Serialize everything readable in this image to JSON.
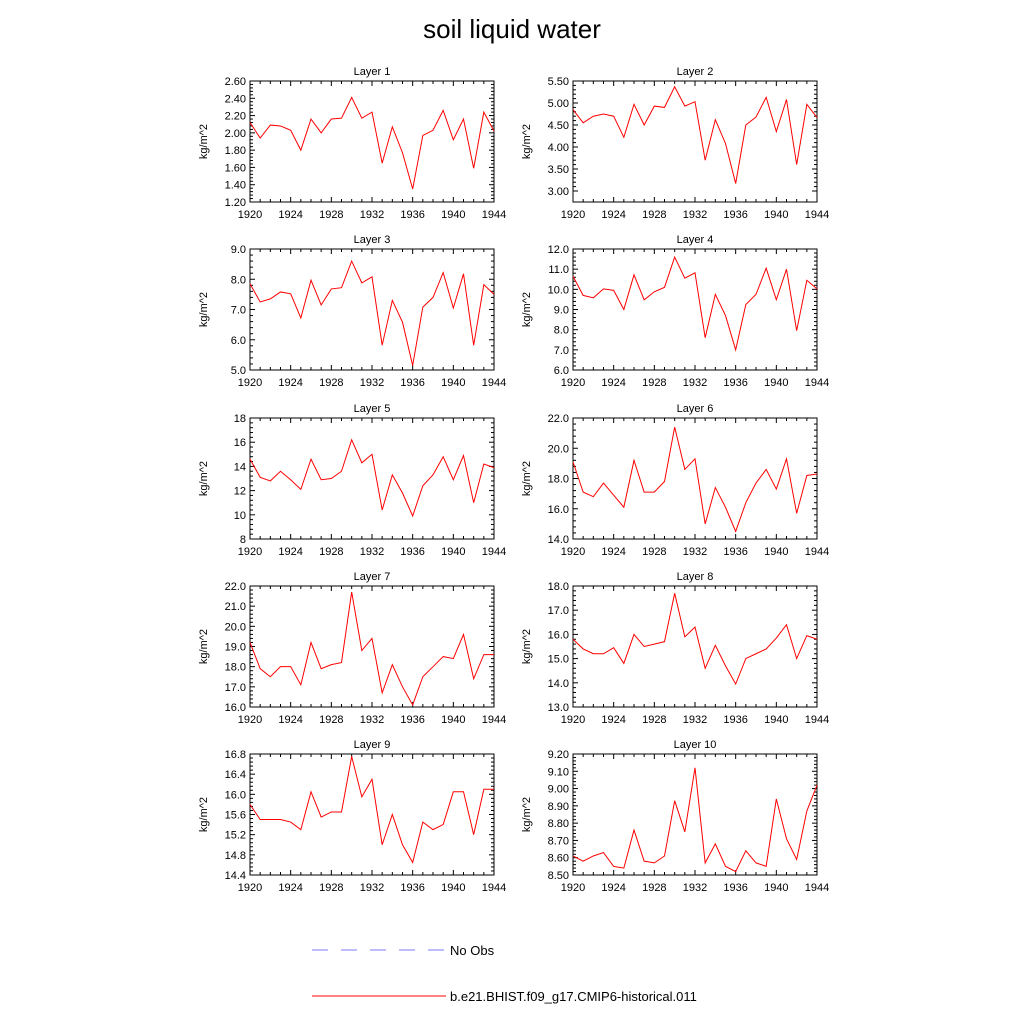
{
  "figure_title": "soil liquid water",
  "legend": {
    "obs_label": "No Obs",
    "obs_color": "#7a7aff",
    "model_label": "b.e21.BHIST.f09_g17.CMIP6-historical.011",
    "model_color": "#ff0000"
  },
  "chart_data": [
    {
      "type": "line",
      "title": "Layer 1",
      "xlabel": "",
      "ylabel": "kg/m^2",
      "xlim": [
        1920,
        1944
      ],
      "ylim": [
        1.2,
        2.6
      ],
      "xticks": [
        "1920",
        "1924",
        "1928",
        "1932",
        "1936",
        "1940",
        "1944"
      ],
      "yticks": [
        "1.20",
        "1.40",
        "1.60",
        "1.80",
        "2.00",
        "2.20",
        "2.40",
        "2.60"
      ],
      "x": [
        1920,
        1921,
        1922,
        1923,
        1924,
        1925,
        1926,
        1927,
        1928,
        1929,
        1930,
        1931,
        1932,
        1933,
        1934,
        1935,
        1936,
        1937,
        1938,
        1939,
        1940,
        1941,
        1942,
        1943,
        1944
      ],
      "series": [
        {
          "name": "b.e21.BHIST.f09_g17.CMIP6-historical.011",
          "values": [
            2.12,
            1.94,
            2.09,
            2.08,
            2.03,
            1.8,
            2.16,
            2.0,
            2.16,
            2.17,
            2.41,
            2.17,
            2.24,
            1.65,
            2.07,
            1.77,
            1.35,
            1.97,
            2.03,
            2.26,
            1.92,
            2.16,
            1.59,
            2.24,
            2.02
          ]
        }
      ]
    },
    {
      "type": "line",
      "title": "Layer 2",
      "xlabel": "",
      "ylabel": "kg/m^2",
      "xlim": [
        1920,
        1944
      ],
      "ylim": [
        2.75,
        5.5
      ],
      "xticks": [
        "1920",
        "1924",
        "1928",
        "1932",
        "1936",
        "1940",
        "1944"
      ],
      "yticks": [
        "3.00",
        "3.50",
        "4.00",
        "4.50",
        "5.00",
        "5.50"
      ],
      "x": [
        1920,
        1921,
        1922,
        1923,
        1924,
        1925,
        1926,
        1927,
        1928,
        1929,
        1930,
        1931,
        1932,
        1933,
        1934,
        1935,
        1936,
        1937,
        1938,
        1939,
        1940,
        1941,
        1942,
        1943,
        1944
      ],
      "series": [
        {
          "name": "b.e21.BHIST.f09_g17.CMIP6-historical.011",
          "values": [
            4.85,
            4.55,
            4.7,
            4.75,
            4.7,
            4.22,
            4.97,
            4.5,
            4.93,
            4.9,
            5.37,
            4.93,
            5.03,
            3.7,
            4.62,
            4.08,
            3.17,
            4.5,
            4.68,
            5.13,
            4.35,
            5.08,
            3.6,
            4.97,
            4.67
          ]
        }
      ]
    },
    {
      "type": "line",
      "title": "Layer 3",
      "xlabel": "",
      "ylabel": "kg/m^2",
      "xlim": [
        1920,
        1944
      ],
      "ylim": [
        5.0,
        9.0
      ],
      "xticks": [
        "1920",
        "1924",
        "1928",
        "1932",
        "1936",
        "1940",
        "1944"
      ],
      "yticks": [
        "5.0",
        "6.0",
        "7.0",
        "8.0",
        "9.0"
      ],
      "x": [
        1920,
        1921,
        1922,
        1923,
        1924,
        1925,
        1926,
        1927,
        1928,
        1929,
        1930,
        1931,
        1932,
        1933,
        1934,
        1935,
        1936,
        1937,
        1938,
        1939,
        1940,
        1941,
        1942,
        1943,
        1944
      ],
      "series": [
        {
          "name": "b.e21.BHIST.f09_g17.CMIP6-historical.011",
          "values": [
            7.85,
            7.25,
            7.35,
            7.58,
            7.52,
            6.72,
            7.97,
            7.15,
            7.68,
            7.72,
            8.6,
            7.88,
            8.08,
            5.82,
            7.3,
            6.58,
            5.15,
            7.08,
            7.4,
            8.22,
            7.05,
            8.18,
            5.82,
            7.82,
            7.5
          ]
        }
      ]
    },
    {
      "type": "line",
      "title": "Layer 4",
      "xlabel": "",
      "ylabel": "kg/m^2",
      "xlim": [
        1920,
        1944
      ],
      "ylim": [
        6.0,
        12.0
      ],
      "xticks": [
        "1920",
        "1924",
        "1928",
        "1932",
        "1936",
        "1940",
        "1944"
      ],
      "yticks": [
        "6.0",
        "7.0",
        "8.0",
        "9.0",
        "10.0",
        "11.0",
        "12.0"
      ],
      "x": [
        1920,
        1921,
        1922,
        1923,
        1924,
        1925,
        1926,
        1927,
        1928,
        1929,
        1930,
        1931,
        1932,
        1933,
        1934,
        1935,
        1936,
        1937,
        1938,
        1939,
        1940,
        1941,
        1942,
        1943,
        1944
      ],
      "series": [
        {
          "name": "b.e21.BHIST.f09_g17.CMIP6-historical.011",
          "values": [
            10.65,
            9.7,
            9.58,
            10.02,
            9.95,
            9.0,
            10.72,
            9.48,
            9.88,
            10.1,
            11.6,
            10.55,
            10.82,
            7.6,
            9.75,
            8.7,
            7.0,
            9.25,
            9.75,
            11.05,
            9.48,
            11.0,
            7.95,
            10.45,
            10.02
          ]
        }
      ]
    },
    {
      "type": "line",
      "title": "Layer 5",
      "xlabel": "",
      "ylabel": "kg/m^2",
      "xlim": [
        1920,
        1944
      ],
      "ylim": [
        8,
        18
      ],
      "xticks": [
        "1920",
        "1924",
        "1928",
        "1932",
        "1936",
        "1940",
        "1944"
      ],
      "yticks": [
        "8",
        "10",
        "12",
        "14",
        "16",
        "18"
      ],
      "x": [
        1920,
        1921,
        1922,
        1923,
        1924,
        1925,
        1926,
        1927,
        1928,
        1929,
        1930,
        1931,
        1932,
        1933,
        1934,
        1935,
        1936,
        1937,
        1938,
        1939,
        1940,
        1941,
        1942,
        1943,
        1944
      ],
      "series": [
        {
          "name": "b.e21.BHIST.f09_g17.CMIP6-historical.011",
          "values": [
            14.6,
            13.1,
            12.8,
            13.6,
            12.9,
            12.1,
            14.6,
            12.9,
            13.0,
            13.6,
            16.2,
            14.3,
            15.0,
            10.4,
            13.3,
            11.8,
            9.9,
            12.4,
            13.3,
            14.8,
            12.9,
            14.9,
            11.0,
            14.2,
            13.9
          ]
        }
      ]
    },
    {
      "type": "line",
      "title": "Layer 6",
      "xlabel": "",
      "ylabel": "kg/m^2",
      "xlim": [
        1920,
        1944
      ],
      "ylim": [
        14.0,
        22.0
      ],
      "xticks": [
        "1920",
        "1924",
        "1928",
        "1932",
        "1936",
        "1940",
        "1944"
      ],
      "yticks": [
        "14.0",
        "16.0",
        "18.0",
        "20.0",
        "22.0"
      ],
      "x": [
        1920,
        1921,
        1922,
        1923,
        1924,
        1925,
        1926,
        1927,
        1928,
        1929,
        1930,
        1931,
        1932,
        1933,
        1934,
        1935,
        1936,
        1937,
        1938,
        1939,
        1940,
        1941,
        1942,
        1943,
        1944
      ],
      "series": [
        {
          "name": "b.e21.BHIST.f09_g17.CMIP6-historical.011",
          "values": [
            19.1,
            17.1,
            16.8,
            17.7,
            16.9,
            16.1,
            19.2,
            17.1,
            17.1,
            17.8,
            21.4,
            18.6,
            19.3,
            15.0,
            17.4,
            16.1,
            14.5,
            16.4,
            17.7,
            18.6,
            17.3,
            19.3,
            15.7,
            18.2,
            18.3
          ]
        }
      ]
    },
    {
      "type": "line",
      "title": "Layer 7",
      "xlabel": "",
      "ylabel": "kg/m^2",
      "xlim": [
        1920,
        1944
      ],
      "ylim": [
        16.0,
        22.0
      ],
      "xticks": [
        "1920",
        "1924",
        "1928",
        "1932",
        "1936",
        "1940",
        "1944"
      ],
      "yticks": [
        "16.0",
        "17.0",
        "18.0",
        "19.0",
        "20.0",
        "21.0",
        "22.0"
      ],
      "x": [
        1920,
        1921,
        1922,
        1923,
        1924,
        1925,
        1926,
        1927,
        1928,
        1929,
        1930,
        1931,
        1932,
        1933,
        1934,
        1935,
        1936,
        1937,
        1938,
        1939,
        1940,
        1941,
        1942,
        1943,
        1944
      ],
      "series": [
        {
          "name": "b.e21.BHIST.f09_g17.CMIP6-historical.011",
          "values": [
            19.2,
            17.9,
            17.5,
            18.0,
            18.0,
            17.1,
            19.2,
            17.9,
            18.1,
            18.2,
            21.7,
            18.8,
            19.4,
            16.7,
            18.1,
            17.0,
            16.1,
            17.5,
            18.0,
            18.5,
            18.4,
            19.6,
            17.4,
            18.6,
            18.6
          ]
        }
      ]
    },
    {
      "type": "line",
      "title": "Layer 8",
      "xlabel": "",
      "ylabel": "kg/m^2",
      "xlim": [
        1920,
        1944
      ],
      "ylim": [
        13.0,
        18.0
      ],
      "xticks": [
        "1920",
        "1924",
        "1928",
        "1932",
        "1936",
        "1940",
        "1944"
      ],
      "yticks": [
        "13.0",
        "14.0",
        "15.0",
        "16.0",
        "17.0",
        "18.0"
      ],
      "x": [
        1920,
        1921,
        1922,
        1923,
        1924,
        1925,
        1926,
        1927,
        1928,
        1929,
        1930,
        1931,
        1932,
        1933,
        1934,
        1935,
        1936,
        1937,
        1938,
        1939,
        1940,
        1941,
        1942,
        1943,
        1944
      ],
      "series": [
        {
          "name": "b.e21.BHIST.f09_g17.CMIP6-historical.011",
          "values": [
            15.8,
            15.4,
            15.2,
            15.2,
            15.45,
            14.8,
            16.0,
            15.5,
            15.6,
            15.7,
            17.7,
            15.9,
            16.3,
            14.6,
            15.55,
            14.7,
            13.95,
            15.0,
            15.2,
            15.4,
            15.85,
            16.4,
            15.0,
            15.95,
            15.8
          ]
        }
      ]
    },
    {
      "type": "line",
      "title": "Layer 9",
      "xlabel": "",
      "ylabel": "kg/m^2",
      "xlim": [
        1920,
        1944
      ],
      "ylim": [
        14.4,
        16.8
      ],
      "xticks": [
        "1920",
        "1924",
        "1928",
        "1932",
        "1936",
        "1940",
        "1944"
      ],
      "yticks": [
        "14.4",
        "14.8",
        "15.2",
        "15.6",
        "16.0",
        "16.4",
        "16.8"
      ],
      "x": [
        1920,
        1921,
        1922,
        1923,
        1924,
        1925,
        1926,
        1927,
        1928,
        1929,
        1930,
        1931,
        1932,
        1933,
        1934,
        1935,
        1936,
        1937,
        1938,
        1939,
        1940,
        1941,
        1942,
        1943,
        1944
      ],
      "series": [
        {
          "name": "b.e21.BHIST.f09_g17.CMIP6-historical.011",
          "values": [
            15.8,
            15.5,
            15.5,
            15.5,
            15.45,
            15.3,
            16.05,
            15.55,
            15.65,
            15.65,
            16.75,
            15.95,
            16.3,
            15.0,
            15.6,
            15.0,
            14.65,
            15.45,
            15.3,
            15.4,
            16.05,
            16.05,
            15.2,
            16.1,
            16.1
          ]
        }
      ]
    },
    {
      "type": "line",
      "title": "Layer 10",
      "xlabel": "",
      "ylabel": "kg/m^2",
      "xlim": [
        1920,
        1944
      ],
      "ylim": [
        8.5,
        9.2
      ],
      "xticks": [
        "1920",
        "1924",
        "1928",
        "1932",
        "1936",
        "1940",
        "1944"
      ],
      "yticks": [
        "8.50",
        "8.60",
        "8.70",
        "8.80",
        "8.90",
        "9.00",
        "9.10",
        "9.20"
      ],
      "x": [
        1920,
        1921,
        1922,
        1923,
        1924,
        1925,
        1926,
        1927,
        1928,
        1929,
        1930,
        1931,
        1932,
        1933,
        1934,
        1935,
        1936,
        1937,
        1938,
        1939,
        1940,
        1941,
        1942,
        1943,
        1944
      ],
      "series": [
        {
          "name": "b.e21.BHIST.f09_g17.CMIP6-historical.011",
          "values": [
            8.61,
            8.58,
            8.61,
            8.63,
            8.55,
            8.54,
            8.76,
            8.58,
            8.57,
            8.61,
            8.93,
            8.75,
            9.12,
            8.57,
            8.68,
            8.55,
            8.52,
            8.64,
            8.57,
            8.55,
            8.94,
            8.71,
            8.59,
            8.87,
            9.02
          ]
        }
      ]
    }
  ]
}
